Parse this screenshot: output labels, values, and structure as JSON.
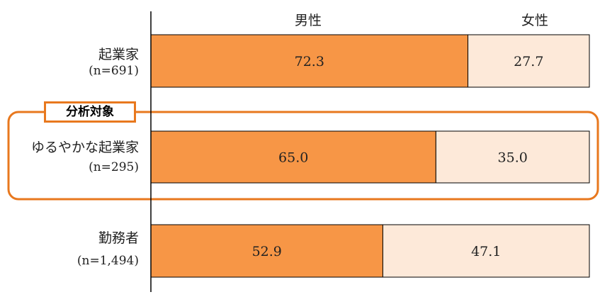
{
  "chart_data": {
    "type": "bar",
    "orientation": "horizontal",
    "stacked": true,
    "percent": true,
    "legend": [
      "男性",
      "女性"
    ],
    "categories": [
      {
        "name": "起業家",
        "n": "(n=691)"
      },
      {
        "name": "ゆるやかな起業家",
        "n": "(n=295)"
      },
      {
        "name": "勤務者",
        "n": "(n=1,494)"
      }
    ],
    "series": [
      {
        "name": "男性",
        "values": [
          72.3,
          65.0,
          52.9
        ],
        "color": "#f79646"
      },
      {
        "name": "女性",
        "values": [
          27.7,
          35.0,
          47.1
        ],
        "color": "#fde9d9"
      }
    ],
    "value_labels": [
      [
        "72.3",
        "27.7"
      ],
      [
        "65.0",
        "35.0"
      ],
      [
        "52.9",
        "47.1"
      ]
    ],
    "xlim": [
      0,
      100
    ],
    "highlight": {
      "label": "分析対象",
      "category_index": 1,
      "color": "#e8781e"
    }
  }
}
